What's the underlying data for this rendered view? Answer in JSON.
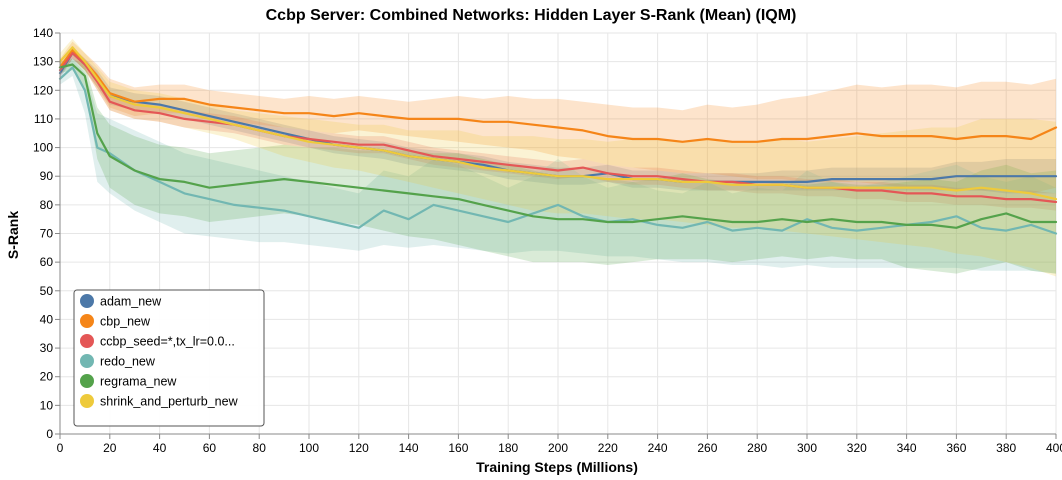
{
  "chart_data": {
    "type": "line",
    "title": "Ccbp Server: Combined Networks: Hidden Layer S-Rank (Mean) (IQM)",
    "xlabel": "Training Steps (Millions)",
    "ylabel": "S-Rank",
    "xlim": [
      0,
      400
    ],
    "ylim": [
      0,
      140
    ],
    "x_ticks": [
      0,
      20,
      40,
      60,
      80,
      100,
      120,
      140,
      160,
      180,
      200,
      220,
      240,
      260,
      280,
      300,
      320,
      340,
      360,
      380,
      400
    ],
    "y_ticks": [
      0,
      10,
      20,
      30,
      40,
      50,
      60,
      70,
      80,
      90,
      100,
      110,
      120,
      130,
      140
    ],
    "grid": true,
    "legend_position": "bottom-left",
    "x": [
      0,
      5,
      10,
      15,
      20,
      30,
      40,
      50,
      60,
      70,
      80,
      90,
      100,
      110,
      120,
      130,
      140,
      150,
      160,
      170,
      180,
      190,
      200,
      210,
      220,
      230,
      240,
      250,
      260,
      270,
      280,
      290,
      300,
      310,
      320,
      330,
      340,
      350,
      360,
      370,
      380,
      390,
      400
    ],
    "series": [
      {
        "name": "adam_new",
        "color": "#4c78a8",
        "values": [
          126,
          133,
          129,
          124,
          118,
          116,
          115,
          113,
          111,
          109,
          107,
          105,
          103,
          101,
          100,
          99,
          97,
          96,
          95,
          94,
          92,
          91,
          90,
          90,
          91,
          89,
          89,
          88,
          88,
          88,
          88,
          88,
          88,
          89,
          89,
          89,
          89,
          89,
          90,
          90,
          90,
          90,
          90
        ],
        "lower": [
          124,
          131,
          127,
          121,
          115,
          113,
          112,
          110,
          108,
          106,
          104,
          102,
          100,
          98,
          97,
          96,
          94,
          93,
          92,
          91,
          89,
          88,
          87,
          87,
          88,
          86,
          86,
          85,
          85,
          85,
          85,
          85,
          85,
          85,
          85,
          85,
          85,
          85,
          85,
          85,
          84,
          84,
          84
        ],
        "upper": [
          128,
          135,
          131,
          127,
          121,
          119,
          118,
          116,
          114,
          112,
          110,
          108,
          106,
          104,
          103,
          102,
          100,
          99,
          98,
          97,
          95,
          94,
          93,
          93,
          94,
          92,
          92,
          91,
          91,
          91,
          91,
          92,
          92,
          93,
          93,
          93,
          93,
          93,
          95,
          95,
          96,
          96,
          96
        ]
      },
      {
        "name": "cbp_new",
        "color": "#f58518",
        "values": [
          128,
          134,
          130,
          125,
          119,
          116,
          117,
          117,
          115,
          114,
          113,
          112,
          112,
          111,
          112,
          111,
          110,
          110,
          110,
          109,
          109,
          108,
          107,
          106,
          104,
          103,
          103,
          102,
          103,
          102,
          102,
          103,
          103,
          104,
          105,
          104,
          104,
          104,
          103,
          104,
          104,
          103,
          107
        ],
        "lower": [
          125,
          131,
          127,
          121,
          114,
          111,
          112,
          112,
          110,
          109,
          108,
          107,
          106,
          105,
          106,
          105,
          104,
          103,
          102,
          101,
          100,
          99,
          97,
          96,
          94,
          93,
          92,
          91,
          91,
          90,
          89,
          89,
          88,
          88,
          88,
          87,
          86,
          86,
          85,
          85,
          85,
          84,
          86
        ],
        "upper": [
          131,
          137,
          133,
          129,
          124,
          121,
          122,
          122,
          120,
          119,
          118,
          117,
          118,
          117,
          118,
          117,
          116,
          117,
          118,
          117,
          118,
          117,
          117,
          116,
          115,
          114,
          114,
          113,
          115,
          114,
          115,
          117,
          118,
          120,
          122,
          121,
          122,
          122,
          121,
          123,
          123,
          122,
          124
        ]
      },
      {
        "name": "ccbp_seed=*,tx_lr=0.0...",
        "color": "#e45756",
        "values": [
          127,
          133,
          129,
          123,
          116,
          113,
          112,
          110,
          109,
          108,
          106,
          104,
          103,
          102,
          101,
          101,
          99,
          97,
          96,
          95,
          94,
          93,
          92,
          93,
          91,
          90,
          90,
          89,
          88,
          88,
          87,
          87,
          86,
          86,
          85,
          85,
          84,
          84,
          83,
          83,
          82,
          82,
          81
        ],
        "lower": [
          125,
          131,
          127,
          120,
          113,
          110,
          109,
          107,
          106,
          105,
          103,
          101,
          100,
          99,
          98,
          98,
          96,
          94,
          93,
          92,
          91,
          90,
          89,
          90,
          88,
          87,
          87,
          86,
          85,
          85,
          84,
          84,
          83,
          83,
          82,
          82,
          81,
          81,
          80,
          80,
          79,
          79,
          78
        ],
        "upper": [
          129,
          135,
          131,
          126,
          119,
          116,
          115,
          113,
          112,
          111,
          109,
          107,
          106,
          105,
          104,
          104,
          102,
          100,
          99,
          98,
          97,
          96,
          95,
          96,
          94,
          93,
          93,
          92,
          91,
          91,
          90,
          90,
          89,
          89,
          88,
          88,
          87,
          87,
          86,
          86,
          85,
          85,
          84
        ]
      },
      {
        "name": "redo_new",
        "color": "#72b7b2",
        "values": [
          124,
          128,
          120,
          100,
          98,
          92,
          88,
          84,
          82,
          80,
          79,
          78,
          76,
          74,
          72,
          78,
          75,
          80,
          78,
          76,
          74,
          77,
          80,
          76,
          74,
          75,
          73,
          72,
          74,
          71,
          72,
          71,
          75,
          72,
          71,
          72,
          73,
          74,
          76,
          72,
          71,
          73,
          70
        ],
        "lower": [
          122,
          125,
          112,
          88,
          84,
          78,
          74,
          70,
          69,
          68,
          67,
          67,
          66,
          65,
          64,
          66,
          65,
          66,
          65,
          64,
          63,
          64,
          64,
          63,
          62,
          62,
          61,
          60,
          60,
          59,
          59,
          58,
          59,
          58,
          58,
          58,
          58,
          58,
          58,
          57,
          57,
          57,
          56
        ],
        "upper": [
          126,
          131,
          126,
          112,
          110,
          106,
          102,
          98,
          96,
          94,
          92,
          90,
          88,
          86,
          84,
          92,
          90,
          96,
          94,
          90,
          86,
          90,
          96,
          90,
          86,
          88,
          85,
          84,
          88,
          84,
          86,
          85,
          92,
          88,
          86,
          88,
          90,
          92,
          94,
          90,
          88,
          90,
          86
        ]
      },
      {
        "name": "regrama_new",
        "color": "#54a24b",
        "values": [
          128,
          129,
          125,
          105,
          97,
          92,
          89,
          88,
          86,
          87,
          88,
          89,
          88,
          87,
          86,
          85,
          84,
          83,
          82,
          80,
          78,
          76,
          75,
          75,
          74,
          74,
          75,
          76,
          75,
          74,
          74,
          75,
          74,
          75,
          74,
          74,
          73,
          73,
          72,
          75,
          77,
          74,
          74
        ],
        "lower": [
          126,
          127,
          121,
          96,
          86,
          80,
          77,
          76,
          74,
          75,
          76,
          77,
          76,
          74,
          73,
          71,
          69,
          68,
          66,
          64,
          62,
          60,
          60,
          60,
          59,
          60,
          61,
          61,
          61,
          60,
          61,
          62,
          61,
          62,
          61,
          61,
          58,
          57,
          56,
          58,
          60,
          57,
          56
        ],
        "upper": [
          130,
          131,
          129,
          114,
          108,
          104,
          101,
          100,
          98,
          99,
          100,
          101,
          100,
          100,
          99,
          99,
          99,
          98,
          98,
          96,
          94,
          92,
          90,
          90,
          89,
          88,
          89,
          91,
          89,
          88,
          87,
          88,
          87,
          88,
          87,
          87,
          88,
          89,
          88,
          92,
          94,
          91,
          92
        ]
      },
      {
        "name": "shrink_and_perturb_new",
        "color": "#eeca3b",
        "values": [
          130,
          135,
          130,
          124,
          118,
          115,
          114,
          112,
          110,
          108,
          106,
          104,
          102,
          101,
          100,
          99,
          97,
          96,
          95,
          93,
          92,
          91,
          90,
          90,
          89,
          89,
          89,
          88,
          88,
          87,
          87,
          87,
          86,
          86,
          86,
          86,
          86,
          86,
          85,
          86,
          85,
          84,
          82
        ],
        "lower": [
          127,
          132,
          127,
          120,
          113,
          110,
          109,
          107,
          105,
          103,
          100,
          97,
          95,
          93,
          92,
          90,
          88,
          86,
          84,
          82,
          80,
          78,
          77,
          77,
          76,
          75,
          75,
          74,
          73,
          72,
          72,
          71,
          70,
          69,
          68,
          67,
          66,
          65,
          63,
          62,
          60,
          58,
          55
        ],
        "upper": [
          133,
          138,
          133,
          128,
          123,
          120,
          119,
          117,
          115,
          113,
          112,
          111,
          110,
          109,
          108,
          108,
          106,
          106,
          106,
          104,
          104,
          104,
          103,
          103,
          102,
          103,
          103,
          102,
          103,
          102,
          102,
          103,
          102,
          103,
          104,
          105,
          106,
          107,
          107,
          110,
          110,
          110,
          109
        ]
      }
    ]
  }
}
